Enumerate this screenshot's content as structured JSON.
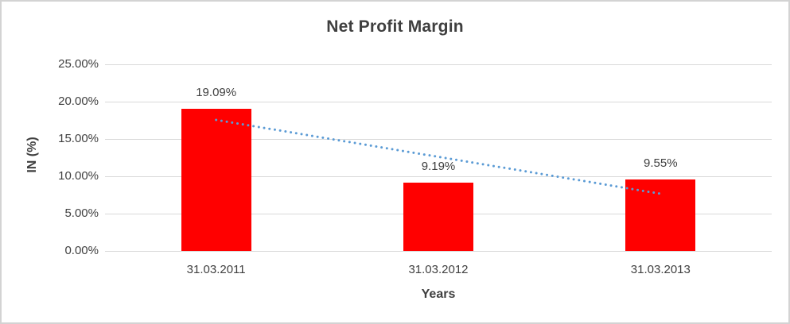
{
  "chart_data": {
    "type": "bar",
    "title": "Net Profit Margin",
    "xlabel": "Years",
    "ylabel": "IN (%)",
    "categories": [
      "31.03.2011",
      "31.03.2012",
      "31.03.2013"
    ],
    "values": [
      19.09,
      9.19,
      9.55
    ],
    "data_labels": [
      "19.09%",
      "9.19%",
      "9.55%"
    ],
    "yticks": [
      0,
      5,
      10,
      15,
      20,
      25
    ],
    "ytick_labels": [
      "0.00%",
      "5.00%",
      "10.00%",
      "15.00%",
      "20.00%",
      "25.00%"
    ],
    "ylim": [
      0,
      25
    ],
    "grid": true,
    "legend": false,
    "bar_color": "#ff0000",
    "gridline_color": "#d9d9d9",
    "text_color": "#404040",
    "trendline": {
      "style": "dotted",
      "color": "#5b9bd5",
      "start_value": 17.55,
      "end_value": 7.66
    }
  }
}
